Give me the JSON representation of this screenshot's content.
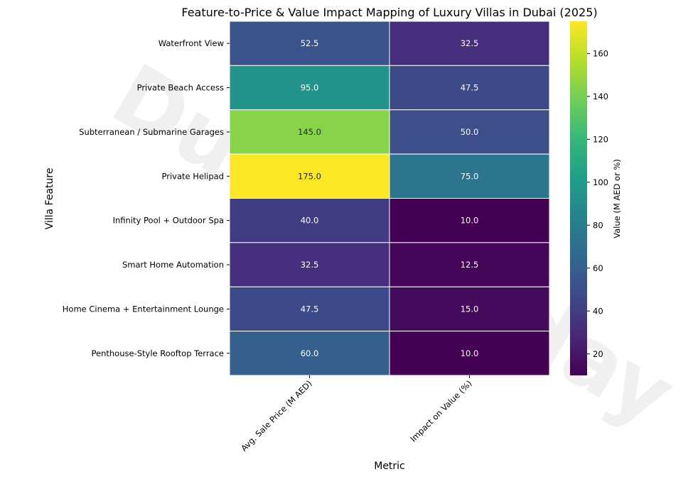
{
  "chart_data": {
    "type": "heatmap",
    "title": "Feature-to-Price & Value Impact Mapping of Luxury Villas in Dubai (2025)",
    "xlabel": "Metric",
    "ylabel": "Villa Feature",
    "colorbar_label": "Value (M AED or %)",
    "watermark": "Dubaiholiday",
    "x_categories": [
      "Avg. Sale Price (M AED)",
      "Impact on Value (%)"
    ],
    "y_categories": [
      "Waterfront View",
      "Private Beach Access",
      "Subterranean / Submarine Garages",
      "Private Helipad",
      "Infinity Pool + Outdoor Spa",
      "Smart Home Automation",
      "Home Cinema + Entertainment Lounge",
      "Penthouse-Style Rooftop Terrace"
    ],
    "values": [
      [
        52.5,
        32.5
      ],
      [
        95.0,
        47.5
      ],
      [
        145.0,
        50.0
      ],
      [
        175.0,
        75.0
      ],
      [
        40.0,
        10.0
      ],
      [
        32.5,
        12.5
      ],
      [
        47.5,
        15.0
      ],
      [
        60.0,
        10.0
      ]
    ],
    "value_labels": [
      [
        "52.5",
        "32.5"
      ],
      [
        "95.0",
        "47.5"
      ],
      [
        "145.0",
        "50.0"
      ],
      [
        "175.0",
        "75.0"
      ],
      [
        "40.0",
        "10.0"
      ],
      [
        "32.5",
        "12.5"
      ],
      [
        "47.5",
        "15.0"
      ],
      [
        "60.0",
        "10.0"
      ]
    ],
    "color_range": [
      10,
      175
    ],
    "colorbar_ticks": [
      20,
      40,
      60,
      80,
      100,
      120,
      140,
      160
    ],
    "colormap": "viridis",
    "colormap_stops": [
      "#440154",
      "#482878",
      "#3e4989",
      "#31688e",
      "#26828e",
      "#1f9e89",
      "#35b779",
      "#6ece58",
      "#b5de2b",
      "#fde725"
    ],
    "grid": false
  }
}
